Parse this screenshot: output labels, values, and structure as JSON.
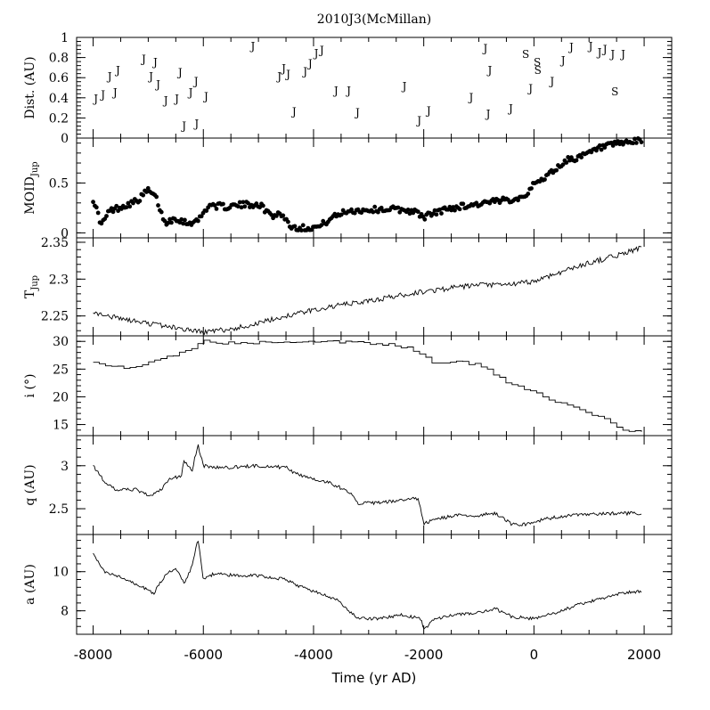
{
  "chart_data": {
    "type": "line",
    "title": "2010J3(McMillan)",
    "xlabel": "Time (yr AD)",
    "xlim": [
      -8300,
      2500
    ],
    "xticks": [
      "-8000",
      "-6000",
      "-4000",
      "-2000",
      "0",
      "2000"
    ],
    "xtick_values": [
      -8000,
      -6000,
      -4000,
      -2000,
      0,
      2000
    ],
    "panels": [
      {
        "id": "dist",
        "ylabel": "Dist. (AU)",
        "type": "scatter-text",
        "ylim": [
          0,
          1
        ],
        "yticks": [
          "0",
          "0.2",
          "0.4",
          "0.6",
          "0.8",
          "1"
        ],
        "ytick_values": [
          0,
          0.2,
          0.4,
          0.6,
          0.8,
          1
        ],
        "encounters": [
          {
            "t": -7950,
            "d": 0.4,
            "s": "J"
          },
          {
            "t": -7820,
            "d": 0.44,
            "s": "J"
          },
          {
            "t": -7700,
            "d": 0.62,
            "s": "J"
          },
          {
            "t": -7600,
            "d": 0.46,
            "s": "J"
          },
          {
            "t": -7550,
            "d": 0.68,
            "s": "J"
          },
          {
            "t": -7080,
            "d": 0.79,
            "s": "J"
          },
          {
            "t": -6950,
            "d": 0.62,
            "s": "J"
          },
          {
            "t": -6870,
            "d": 0.76,
            "s": "J"
          },
          {
            "t": -6820,
            "d": 0.54,
            "s": "J"
          },
          {
            "t": -6680,
            "d": 0.38,
            "s": "J"
          },
          {
            "t": -6480,
            "d": 0.4,
            "s": "J"
          },
          {
            "t": -6420,
            "d": 0.66,
            "s": "J"
          },
          {
            "t": -6350,
            "d": 0.13,
            "s": "J"
          },
          {
            "t": -6230,
            "d": 0.46,
            "s": "J"
          },
          {
            "t": -6130,
            "d": 0.57,
            "s": "J"
          },
          {
            "t": -6120,
            "d": 0.15,
            "s": "J"
          },
          {
            "t": -5950,
            "d": 0.42,
            "s": "J"
          },
          {
            "t": -5100,
            "d": 0.92,
            "s": "J"
          },
          {
            "t": -4620,
            "d": 0.62,
            "s": "J"
          },
          {
            "t": -4540,
            "d": 0.7,
            "s": "J"
          },
          {
            "t": -4460,
            "d": 0.64,
            "s": "J"
          },
          {
            "t": -4350,
            "d": 0.27,
            "s": "J"
          },
          {
            "t": -4150,
            "d": 0.67,
            "s": "J"
          },
          {
            "t": -4060,
            "d": 0.75,
            "s": "J"
          },
          {
            "t": -3950,
            "d": 0.85,
            "s": "J"
          },
          {
            "t": -3850,
            "d": 0.88,
            "s": "J"
          },
          {
            "t": -3590,
            "d": 0.48,
            "s": "J"
          },
          {
            "t": -3360,
            "d": 0.48,
            "s": "J"
          },
          {
            "t": -3200,
            "d": 0.26,
            "s": "J"
          },
          {
            "t": -2350,
            "d": 0.52,
            "s": "J"
          },
          {
            "t": -2080,
            "d": 0.18,
            "s": "J"
          },
          {
            "t": -1910,
            "d": 0.28,
            "s": "J"
          },
          {
            "t": -1140,
            "d": 0.41,
            "s": "J"
          },
          {
            "t": -880,
            "d": 0.9,
            "s": "J"
          },
          {
            "t": -800,
            "d": 0.68,
            "s": "J"
          },
          {
            "t": -830,
            "d": 0.25,
            "s": "J"
          },
          {
            "t": -420,
            "d": 0.3,
            "s": "J"
          },
          {
            "t": -60,
            "d": 0.5,
            "s": "J"
          },
          {
            "t": 330,
            "d": 0.57,
            "s": "J"
          },
          {
            "t": 530,
            "d": 0.78,
            "s": "J"
          },
          {
            "t": 680,
            "d": 0.91,
            "s": "J"
          },
          {
            "t": 1030,
            "d": 0.92,
            "s": "J"
          },
          {
            "t": 1190,
            "d": 0.86,
            "s": "J"
          },
          {
            "t": 1290,
            "d": 0.89,
            "s": "J"
          },
          {
            "t": 1430,
            "d": 0.84,
            "s": "J"
          },
          {
            "t": 1620,
            "d": 0.84,
            "s": "J"
          },
          {
            "t": -150,
            "d": 0.84,
            "s": "S"
          },
          {
            "t": 60,
            "d": 0.76,
            "s": "S"
          },
          {
            "t": 70,
            "d": 0.68,
            "s": "S"
          },
          {
            "t": 1470,
            "d": 0.47,
            "s": "S"
          }
        ]
      },
      {
        "id": "moid",
        "ylabel": "MOID",
        "ylabel_sub": "Jup",
        "type": "scatter",
        "ylim": [
          -0.05,
          0.95
        ],
        "yticks": [
          "0",
          "0.5"
        ],
        "ytick_values": [
          0,
          0.5
        ],
        "anchors": [
          [
            -8000,
            0.34
          ],
          [
            -7850,
            0.08
          ],
          [
            -7700,
            0.22
          ],
          [
            -7500,
            0.26
          ],
          [
            -7200,
            0.32
          ],
          [
            -7000,
            0.43
          ],
          [
            -6850,
            0.34
          ],
          [
            -6700,
            0.1
          ],
          [
            -6500,
            0.15
          ],
          [
            -6300,
            0.1
          ],
          [
            -6100,
            0.12
          ],
          [
            -5900,
            0.28
          ],
          [
            -5600,
            0.26
          ],
          [
            -5300,
            0.28
          ],
          [
            -5000,
            0.29
          ],
          [
            -4750,
            0.17
          ],
          [
            -4600,
            0.2
          ],
          [
            -4400,
            0.06
          ],
          [
            -4200,
            0.05
          ],
          [
            -3900,
            0.06
          ],
          [
            -3700,
            0.14
          ],
          [
            -3400,
            0.22
          ],
          [
            -3000,
            0.23
          ],
          [
            -2600,
            0.24
          ],
          [
            -2200,
            0.22
          ],
          [
            -2000,
            0.16
          ],
          [
            -1700,
            0.22
          ],
          [
            -1400,
            0.26
          ],
          [
            -1000,
            0.29
          ],
          [
            -600,
            0.32
          ],
          [
            -200,
            0.36
          ],
          [
            0,
            0.48
          ],
          [
            300,
            0.6
          ],
          [
            600,
            0.73
          ],
          [
            900,
            0.77
          ],
          [
            1200,
            0.85
          ],
          [
            1600,
            0.9
          ],
          [
            1950,
            0.92
          ]
        ],
        "n": 330,
        "noise": 0.03
      },
      {
        "id": "tjup",
        "ylabel": "T",
        "ylabel_sub": "Jup",
        "type": "line",
        "ylim": [
          2.223,
          2.356
        ],
        "yticks": [
          "2.25",
          "2.3",
          "2.35"
        ],
        "ytick_values": [
          2.25,
          2.3,
          2.35
        ],
        "anchors": [
          [
            -8000,
            2.255
          ],
          [
            -7500,
            2.246
          ],
          [
            -7000,
            2.24
          ],
          [
            -6500,
            2.234
          ],
          [
            -6000,
            2.228
          ],
          [
            -5500,
            2.232
          ],
          [
            -5000,
            2.24
          ],
          [
            -4500,
            2.25
          ],
          [
            -4000,
            2.258
          ],
          [
            -3500,
            2.265
          ],
          [
            -3000,
            2.27
          ],
          [
            -2500,
            2.277
          ],
          [
            -2000,
            2.283
          ],
          [
            -1500,
            2.288
          ],
          [
            -1000,
            2.292
          ],
          [
            -500,
            2.292
          ],
          [
            0,
            2.297
          ],
          [
            500,
            2.31
          ],
          [
            1000,
            2.322
          ],
          [
            1500,
            2.332
          ],
          [
            1950,
            2.343
          ]
        ],
        "n": 440,
        "noise": 0.0035
      },
      {
        "id": "incl",
        "ylabel": "i (°)",
        "type": "step",
        "ylim": [
          13,
          31
        ],
        "yticks": [
          "15",
          "20",
          "25",
          "30"
        ],
        "ytick_values": [
          15,
          20,
          25,
          30
        ],
        "anchors": [
          [
            -8000,
            26
          ],
          [
            -7700,
            25.6
          ],
          [
            -7400,
            25
          ],
          [
            -7000,
            26.2
          ],
          [
            -6500,
            27.5
          ],
          [
            -6200,
            29
          ],
          [
            -6000,
            30.5
          ],
          [
            -5800,
            29.8
          ],
          [
            -5400,
            29.7
          ],
          [
            -5000,
            29.8
          ],
          [
            -4500,
            29.7
          ],
          [
            -4000,
            29.8
          ],
          [
            -3500,
            29.9
          ],
          [
            -3000,
            29.6
          ],
          [
            -2500,
            29.3
          ],
          [
            -2200,
            28.5
          ],
          [
            -1800,
            26
          ],
          [
            -1400,
            26.3
          ],
          [
            -1000,
            25.8
          ],
          [
            -800,
            24.5
          ],
          [
            -500,
            22.5
          ],
          [
            0,
            21
          ],
          [
            300,
            19.5
          ],
          [
            600,
            18.5
          ],
          [
            1000,
            17
          ],
          [
            1300,
            16
          ],
          [
            1600,
            14
          ],
          [
            1950,
            13.7
          ]
        ],
        "n": 90,
        "noise": 0.25
      },
      {
        "id": "q",
        "ylabel": "q (AU)",
        "ylim": [
          2.2,
          3.35
        ],
        "yticks": [
          "2.5",
          "3"
        ],
        "ytick_values": [
          2.5,
          3
        ],
        "type": "line",
        "anchors": [
          [
            -8000,
            3.0
          ],
          [
            -7800,
            2.82
          ],
          [
            -7600,
            2.72
          ],
          [
            -7200,
            2.72
          ],
          [
            -7000,
            2.65
          ],
          [
            -6800,
            2.7
          ],
          [
            -6600,
            2.85
          ],
          [
            -6400,
            2.88
          ],
          [
            -6350,
            3.05
          ],
          [
            -6200,
            2.95
          ],
          [
            -6100,
            3.25
          ],
          [
            -6000,
            3.0
          ],
          [
            -5800,
            2.98
          ],
          [
            -5500,
            2.98
          ],
          [
            -5000,
            3.0
          ],
          [
            -4500,
            2.98
          ],
          [
            -4300,
            2.9
          ],
          [
            -4000,
            2.85
          ],
          [
            -3700,
            2.8
          ],
          [
            -3300,
            2.68
          ],
          [
            -3200,
            2.56
          ],
          [
            -2800,
            2.57
          ],
          [
            -2400,
            2.6
          ],
          [
            -2100,
            2.62
          ],
          [
            -2000,
            2.32
          ],
          [
            -1800,
            2.38
          ],
          [
            -1400,
            2.42
          ],
          [
            -1000,
            2.42
          ],
          [
            -700,
            2.45
          ],
          [
            -400,
            2.32
          ],
          [
            -100,
            2.32
          ],
          [
            200,
            2.38
          ],
          [
            600,
            2.42
          ],
          [
            1000,
            2.43
          ],
          [
            1500,
            2.45
          ],
          [
            1950,
            2.44
          ]
        ],
        "n": 460,
        "noise": 0.02
      },
      {
        "id": "a",
        "ylabel": "a (AU)",
        "ylim": [
          6.8,
          11.9
        ],
        "yticks": [
          "8",
          "10"
        ],
        "ytick_values": [
          8,
          10
        ],
        "type": "line",
        "anchors": [
          [
            -8000,
            10.9
          ],
          [
            -7800,
            10.0
          ],
          [
            -7500,
            9.7
          ],
          [
            -7100,
            9.2
          ],
          [
            -6900,
            8.9
          ],
          [
            -6700,
            9.8
          ],
          [
            -6500,
            10.2
          ],
          [
            -6350,
            9.4
          ],
          [
            -6200,
            10.3
          ],
          [
            -6100,
            11.7
          ],
          [
            -6000,
            9.6
          ],
          [
            -5800,
            9.9
          ],
          [
            -5400,
            9.8
          ],
          [
            -5000,
            9.8
          ],
          [
            -4500,
            9.6
          ],
          [
            -4300,
            9.3
          ],
          [
            -4000,
            9.0
          ],
          [
            -3600,
            8.6
          ],
          [
            -3200,
            7.6
          ],
          [
            -2800,
            7.6
          ],
          [
            -2400,
            7.8
          ],
          [
            -2050,
            7.6
          ],
          [
            -2000,
            7.0
          ],
          [
            -1800,
            7.6
          ],
          [
            -1400,
            7.8
          ],
          [
            -1000,
            7.9
          ],
          [
            -700,
            8.1
          ],
          [
            -400,
            7.7
          ],
          [
            0,
            7.6
          ],
          [
            400,
            7.9
          ],
          [
            800,
            8.3
          ],
          [
            1200,
            8.6
          ],
          [
            1600,
            8.9
          ],
          [
            1950,
            9.0
          ]
        ],
        "n": 460,
        "noise": 0.08
      }
    ]
  }
}
